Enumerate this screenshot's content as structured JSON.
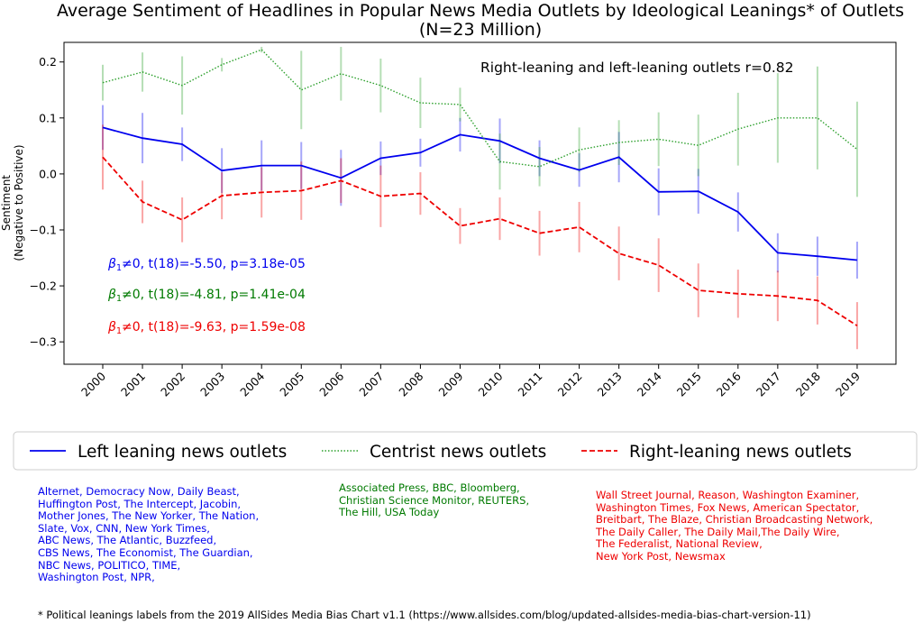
{
  "chart_data": {
    "type": "line",
    "title": "Average Sentiment of Headlines in Popular News Media Outlets by Ideological Leanings* of Outlets",
    "subtitle": "(N=23 Million)",
    "xlabel": "",
    "ylabel": "Sentiment",
    "ylabel_sub": "(Negative to Positive)",
    "ylim": [
      -0.34,
      0.235
    ],
    "yticks": [
      0.2,
      0.1,
      0.0,
      -0.1,
      -0.2,
      -0.3
    ],
    "ytick_labels": [
      "0.2",
      "0.1",
      "0.0",
      "−0.1",
      "−0.2",
      "−0.3"
    ],
    "x": [
      "2000",
      "2001",
      "2002",
      "2003",
      "2004",
      "2005",
      "2006",
      "2007",
      "2008",
      "2009",
      "2010",
      "2011",
      "2012",
      "2013",
      "2014",
      "2015",
      "2016",
      "2017",
      "2018",
      "2019"
    ],
    "grid": false,
    "legend_position": "bottom",
    "series": [
      {
        "name": "Left leaning news outlets",
        "color": "#0000ee",
        "style": "solid",
        "values": [
          0.083,
          0.064,
          0.053,
          0.006,
          0.015,
          0.015,
          -0.007,
          0.028,
          0.038,
          0.07,
          0.059,
          0.028,
          0.007,
          0.03,
          -0.032,
          -0.031,
          -0.068,
          -0.141,
          -0.147,
          -0.154
        ],
        "errors": [
          0.04,
          0.045,
          0.03,
          0.04,
          0.045,
          0.042,
          0.05,
          0.03,
          0.025,
          0.03,
          0.04,
          0.032,
          0.03,
          0.045,
          0.042,
          0.04,
          0.035,
          0.035,
          0.035,
          0.033
        ]
      },
      {
        "name": "Centrist news outlets",
        "color": "#2ca02c",
        "style": "dotted",
        "values": [
          0.163,
          0.182,
          0.158,
          0.195,
          0.222,
          0.15,
          0.179,
          0.158,
          0.127,
          0.124,
          0.022,
          0.013,
          0.043,
          0.056,
          0.062,
          0.051,
          0.08,
          0.1,
          0.1,
          0.044
        ],
        "errors": [
          0.032,
          0.035,
          0.052,
          0.012,
          0.005,
          0.07,
          0.048,
          0.048,
          0.045,
          0.03,
          0.05,
          0.035,
          0.04,
          0.04,
          0.048,
          0.055,
          0.065,
          0.08,
          0.092,
          0.085
        ]
      },
      {
        "name": "Right-leaning news outlets",
        "color": "#ee0000",
        "style": "dashed",
        "values": [
          0.03,
          -0.05,
          -0.082,
          -0.039,
          -0.033,
          -0.03,
          -0.012,
          -0.04,
          -0.035,
          -0.093,
          -0.08,
          -0.106,
          -0.095,
          -0.142,
          -0.163,
          -0.208,
          -0.214,
          -0.218,
          -0.226,
          -0.271
        ],
        "errors": [
          0.058,
          0.038,
          0.04,
          0.042,
          0.045,
          0.052,
          0.04,
          0.055,
          0.038,
          0.032,
          0.038,
          0.04,
          0.045,
          0.048,
          0.048,
          0.048,
          0.043,
          0.045,
          0.043,
          0.042
        ]
      }
    ],
    "annotations": {
      "correlation": "Right-leaning and left-leaning outlets r=0.82",
      "stats": [
        {
          "color": "#0000ee",
          "symbol": "β",
          "subscript": "1",
          "text": "≠0, t(18)=-5.50, p=3.18e-05"
        },
        {
          "color": "#007a00",
          "symbol": "β",
          "subscript": "1",
          "text": "≠0, t(18)=-4.81, p=1.41e-04"
        },
        {
          "color": "#ee0000",
          "symbol": "β",
          "subscript": "1",
          "text": "≠0, t(18)=-9.63, p=1.59e-08"
        }
      ]
    }
  },
  "outlets": {
    "left": [
      "Alternet, Democracy Now, Daily Beast,",
      "Huffington Post, The Intercept, Jacobin,",
      "Mother Jones, The New Yorker, The Nation,",
      "Slate, Vox, CNN, New York Times,",
      "ABC News, The Atlantic, Buzzfeed,",
      "CBS News, The Economist, The Guardian,",
      "NBC News, POLITICO, TIME,",
      "Washington Post, NPR,"
    ],
    "center": [
      "Associated Press, BBC, Bloomberg,",
      "Christian Science Monitor, REUTERS,",
      "The Hill, USA Today"
    ],
    "right": [
      "Wall Street Journal, Reason, Washington Examiner,",
      "Washington Times, Fox News, American Spectator,",
      "Breitbart, The Blaze, Christian Broadcasting Network,",
      "The Daily Caller, The Daily Mail,The Daily Wire,",
      "The Federalist, National Review,",
      "New York Post, Newsmax"
    ]
  },
  "footnote": "* Political leanings labels from the 2019 AllSides Media Bias Chart v1.1 (https://www.allsides.com/blog/updated-allsides-media-bias-chart-version-11)"
}
